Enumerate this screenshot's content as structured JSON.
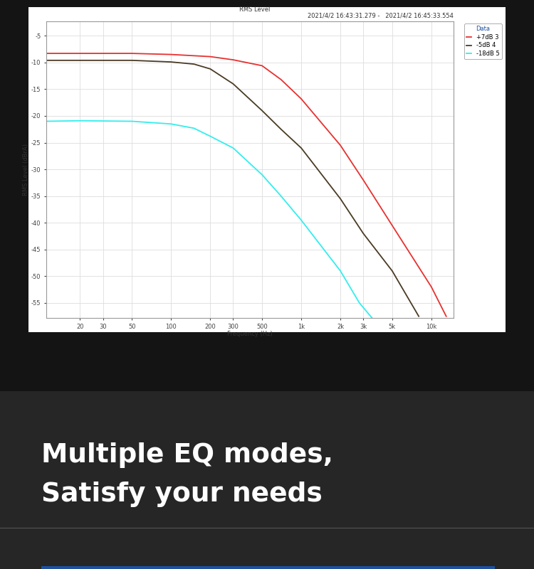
{
  "chart_data": {
    "type": "line",
    "title": "RMS Level",
    "subtitle": "2021/4/2 16:43:31.279 -   2021/4/2 16:45:33.554",
    "x_label": "Frequency (Hz)",
    "y_label": "RMS Level (dBrA)",
    "log": "x",
    "grid": true,
    "legend": "upper right",
    "legend_title": "Data",
    "xlim": [
      11,
      14800
    ],
    "ylim": [
      -57.8,
      -2.3
    ],
    "xticks": [
      20,
      30,
      50,
      {
        "value": 100,
        "label": "100"
      },
      200,
      300,
      500,
      {
        "value": 1000,
        "label": "1k"
      },
      {
        "value": 2000,
        "label": "2k"
      },
      {
        "value": 3000,
        "label": "3k"
      },
      {
        "value": 5000,
        "label": "5k"
      },
      {
        "value": 10000,
        "label": "10k"
      }
    ],
    "yticks": [
      -5,
      -10,
      -15,
      -20,
      -25,
      -30,
      -35,
      -40,
      -45,
      -50,
      -55
    ],
    "series": [
      {
        "name": "+7dB 3",
        "color": "#e8312f",
        "x": [
          11,
          20,
          50,
          100,
          200,
          300,
          500,
          700,
          1000,
          2000,
          3000,
          5000,
          10000,
          13000
        ],
        "values": [
          -8.3,
          -8.3,
          -8.3,
          -8.5,
          -8.9,
          -9.5,
          -10.6,
          -13.2,
          -16.8,
          -25.5,
          -32,
          -40.5,
          -52,
          -57.5
        ]
      },
      {
        "name": "-5dB 4",
        "color": "#4a3b24",
        "x": [
          11,
          50,
          100,
          150,
          200,
          300,
          500,
          700,
          1000,
          2000,
          3000,
          5000,
          8000
        ],
        "values": [
          -9.6,
          -9.6,
          -9.9,
          -10.3,
          -11.2,
          -14,
          -19,
          -22.5,
          -26,
          -35.5,
          -42,
          -49,
          -57.5
        ]
      },
      {
        "name": "-18dB 5",
        "color": "#33eeee",
        "x": [
          11,
          20,
          50,
          100,
          150,
          200,
          300,
          500,
          700,
          1000,
          2000,
          2800,
          3500
        ],
        "values": [
          -21,
          -20.9,
          -21,
          -21.5,
          -22.3,
          -23.8,
          -26,
          -31,
          -35,
          -39.5,
          -49,
          -55,
          -57.8
        ]
      }
    ]
  },
  "headline": [
    "Multiple EQ modes,",
    "Satisfy your needs"
  ]
}
